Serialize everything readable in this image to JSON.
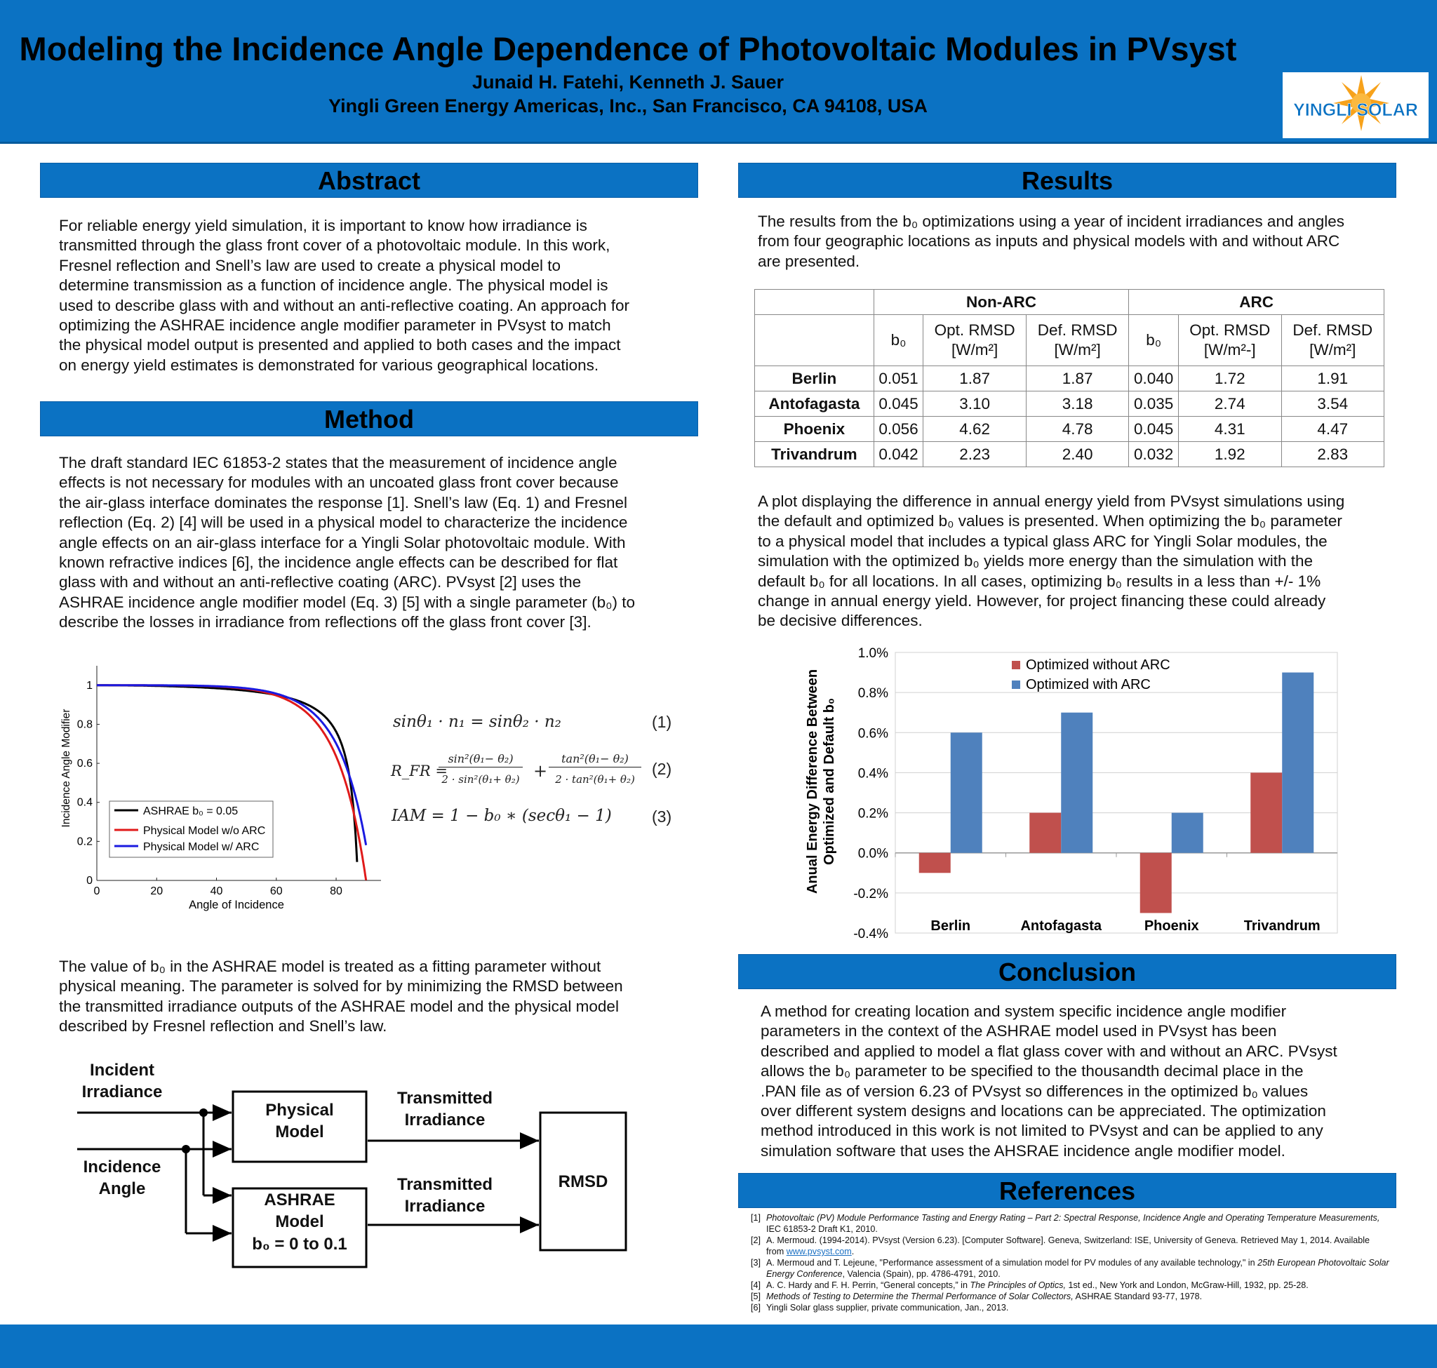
{
  "header": {
    "title": "Modeling the Incidence Angle Dependence of Photovoltaic Modules in PVsyst",
    "authors": "Junaid H. Fatehi, Kenneth J. Sauer",
    "affiliation": "Yingli Green Energy Americas, Inc., San Francisco, CA 94108, USA",
    "logo_text": "YINGLI SOLAR"
  },
  "sections": {
    "abstract": "Abstract",
    "method": "Method",
    "results": "Results",
    "conclusion": "Conclusion",
    "references": "References"
  },
  "abstract": {
    "lines": [
      "For reliable energy yield simulation, it is important to know how irradiance is",
      "transmitted through the glass front cover of a photovoltaic module. In this work,",
      "Fresnel reflection and Snell’s law are used to create a physical model to",
      "determine transmission as a function of incidence angle. The physical model is",
      "used to describe glass with and without an anti-reflective coating. An approach for",
      "optimizing the ASHRAE incidence angle modifier parameter in PVsyst to match",
      "the physical model output is presented and applied to both cases and the impact",
      "on energy yield estimates is demonstrated for various geographical locations."
    ]
  },
  "method": {
    "lines": [
      "The draft standard IEC 61853-2 states that the measurement of incidence angle",
      "effects is not necessary for modules with an uncoated glass front cover because",
      "the air-glass interface dominates the response [1]. Snell’s law (Eq. 1) and Fresnel",
      "reflection (Eq. 2) [4] will be used in a physical model to characterize the incidence",
      "angle effects on an air-glass interface for a Yingli Solar photovoltaic module. With",
      "known refractive indices [6], the incidence angle effects can be described for flat",
      "glass with and without an anti-reflective coating (ARC). PVsyst [2] uses the",
      "ASHRAE incidence angle modifier model (Eq. 3) [5] with a single parameter (b₀) to",
      "describe the losses in irradiance from reflections off the glass front cover [3]."
    ],
    "para2_lines": [
      "The value of b₀ in the ASHRAE model is treated as a fitting parameter without",
      "physical meaning. The parameter is solved for by minimizing the RMSD between",
      "the transmitted irradiance outputs of the ASHRAE model and the physical model",
      "described by Fresnel reflection and Snell’s law."
    ]
  },
  "equations": {
    "eq1": "sinθ₁ · n₁ = sinθ₂ · n₂",
    "eq1_num": "(1)",
    "eq2_lhs": "R_FR =",
    "eq2_t1_num": "sin²(θ₁− θ₂)",
    "eq2_t1_den": "2 · sin²(θ₁+ θ₂)",
    "eq2_plus": "+",
    "eq2_t2_num": "tan²(θ₁− θ₂)",
    "eq2_t2_den": "2 · tan²(θ₁+ θ₂)",
    "eq2_num": "(2)",
    "eq3": "IAM = 1 − b₀ ∗ (secθ₁ − 1)",
    "eq3_num": "(3)"
  },
  "iam_chart": {
    "ylabel": "Incidence Angle Modifier",
    "xlabel": "Angle of Incidence",
    "xticks": [
      "0",
      "20",
      "40",
      "60",
      "80"
    ],
    "yticks": [
      "0",
      "0.2",
      "0.4",
      "0.6",
      "0.8",
      "1"
    ],
    "legend": [
      "ASHRAE b₀ = 0.05",
      "Physical Model w/o ARC",
      "Physical Model w/ ARC"
    ]
  },
  "flow": {
    "input1": [
      "Incident",
      "Irradiance"
    ],
    "input2": [
      "Incidence",
      "Angle"
    ],
    "box1": [
      "Physical",
      "Model"
    ],
    "box2": [
      "ASHRAE",
      "Model",
      "b₀ = 0 to 0.1"
    ],
    "out1": [
      "Transmitted",
      "Irradiance"
    ],
    "out2": [
      "Transmitted",
      "Irradiance"
    ],
    "rmsd": "RMSD"
  },
  "results": {
    "intro_lines": [
      "The results from the b₀ optimizations using a year of incident irradiances and angles",
      "from four geographic locations as inputs and physical models with and without ARC",
      "are presented."
    ],
    "table": {
      "group1": "Non-ARC",
      "group2": "ARC",
      "b0": "b₀",
      "opt1": [
        "Opt. RMSD",
        "[W/m²]"
      ],
      "def1": [
        "Def. RMSD",
        "[W/m²]"
      ],
      "opt2": [
        "Opt. RMSD",
        "[W/m²-]"
      ],
      "def2": [
        "Def. RMSD",
        "[W/m²]"
      ],
      "rows": [
        [
          "Berlin",
          "0.051",
          "1.87",
          "1.87",
          "0.040",
          "1.72",
          "1.91"
        ],
        [
          "Antofagasta",
          "0.045",
          "3.10",
          "3.18",
          "0.035",
          "2.74",
          "3.54"
        ],
        [
          "Phoenix",
          "0.056",
          "4.62",
          "4.78",
          "0.045",
          "4.31",
          "4.47"
        ],
        [
          "Trivandrum",
          "0.042",
          "2.23",
          "2.40",
          "0.032",
          "1.92",
          "2.83"
        ]
      ]
    },
    "plot_lines": [
      "A plot displaying the difference in annual energy yield from PVsyst simulations using",
      "the default and optimized b₀ values is presented. When optimizing the b₀ parameter",
      "to a physical model that includes a typical glass ARC for Yingli Solar modules, the",
      "simulation with the optimized b₀ yields more energy than the simulation with the",
      "default b₀ for all locations. In all cases, optimizing b₀ results in a less than +/- 1%",
      "change in annual energy yield. However, for project financing these could already",
      "be decisive differences."
    ]
  },
  "chart_data": {
    "type": "bar",
    "categories": [
      "Berlin",
      "Antofagasta",
      "Phoenix",
      "Trivandrum"
    ],
    "series": [
      {
        "name": "Optimized without ARC",
        "values": [
          -0.1,
          0.2,
          -0.3,
          0.4
        ],
        "color": "#c0504d"
      },
      {
        "name": "Optimized with ARC",
        "values": [
          0.6,
          0.7,
          0.2,
          0.9
        ],
        "color": "#4f81bd"
      }
    ],
    "ylabel_line1": "Anual Energy Difference Between",
    "ylabel_line2": "Optimized and Default b₀",
    "ylim": [
      -0.4,
      1.0
    ],
    "yticks": [
      "-0.4%",
      "-0.2%",
      "0.0%",
      "0.2%",
      "0.4%",
      "0.6%",
      "0.8%",
      "1.0%"
    ],
    "legend_position": "top"
  },
  "conclusion": {
    "lines": [
      "A method for creating location and system specific incidence angle modifier",
      "parameters in the context of the ASHRAE model used in PVsyst has been",
      "described and applied to model a flat glass cover with and without an ARC. PVsyst",
      "allows the b₀ parameter to be specified to the thousandth decimal place in the",
      ".PAN file as of version 6.23 of PVsyst so differences in the optimized b₀ values",
      "over different system designs and locations can be appreciated. The optimization",
      "method introduced in this work is not limited to PVsyst and can be applied to any",
      "simulation software that uses the AHSRAE incidence angle modifier model."
    ]
  },
  "references": [
    {
      "n": "[1]",
      "italic": "Photovoltaic (PV) Module Performance Tasting and Energy Rating – Part 2: Spectral Response, Incidence Angle and Operating Temperature Measurements,",
      "text": " IEC 61853-2 Draft K1, 2010."
    },
    {
      "n": "[2]",
      "text": "A. Mermoud. (1994-2014). PVsyst (Version 6.23). [Computer Software]. Geneva, Switzerland: ISE, University of Geneva. Retrieved May 1, 2014. Available from ",
      "link": "www.pvsyst.com",
      "tail": "."
    },
    {
      "n": "[3]",
      "text": "A. Mermoud and T. Lejeune, \"Performance assessment of a simulation model for PV modules of any available technology,\" in ",
      "italic": "25th European Photovoltaic Solar Energy Conference",
      "tail": ", Valencia (Spain), pp. 4786-4791, 2010."
    },
    {
      "n": "[4]",
      "text": "A. C. Hardy and F. H. Perrin, “General concepts,” in ",
      "italic": "The Principles of Optics,",
      "tail": " 1st ed., New York and London, McGraw-Hill, 1932, pp. 25-28."
    },
    {
      "n": "[5]",
      "italic": "Methods of Testing to Determine the Thermal Performance of Solar Collectors,",
      "text": " ASHRAE Standard 93-77, 1978."
    },
    {
      "n": "[6]",
      "text": "Yingli Solar glass supplier, private communication, Jan., 2013."
    }
  ]
}
